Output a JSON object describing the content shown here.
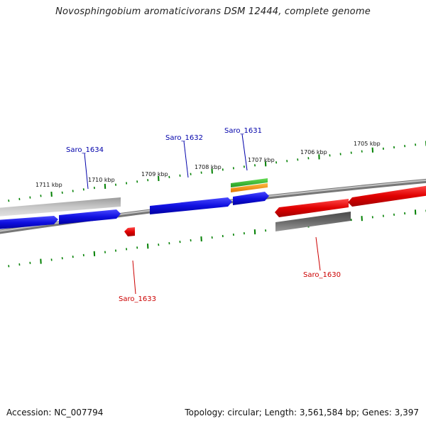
{
  "title": "Novosphingobium aromaticivorans DSM 12444, complete genome",
  "footer": {
    "accession": "Accession: NC_007794",
    "stats": "Topology: circular; Length: 3,561,584 bp; Genes: 3,397"
  },
  "scale": {
    "unit": "kbp",
    "tick_labels": [
      "1711 kbp",
      "1710 kbp",
      "1709 kbp",
      "1708 kbp",
      "1707 kbp",
      "1706 kbp",
      "1705 kbp"
    ]
  },
  "genes": [
    {
      "label": "Saro_1634",
      "strand": "forward",
      "color": "#0000cc"
    },
    {
      "label": "Saro_1633",
      "strand": "reverse",
      "color": "#cc0000"
    },
    {
      "label": "Saro_1632",
      "strand": "forward",
      "color": "#0000cc"
    },
    {
      "label": "Saro_1631",
      "strand": "forward",
      "color": "#0000cc"
    },
    {
      "label": "Saro_1630",
      "strand": "reverse",
      "color": "#cc0000"
    }
  ],
  "colors": {
    "forward_gene": "#1010e0",
    "reverse_gene": "#e00000",
    "forward_label": "#0000aa",
    "reverse_label": "#cc0000",
    "backbone": "#888888",
    "tick": "#008000",
    "feature_gray": "#bbbbbb",
    "feature_dark": "#555555",
    "feature_green": "#22aa22",
    "feature_orange": "#ff9900"
  }
}
